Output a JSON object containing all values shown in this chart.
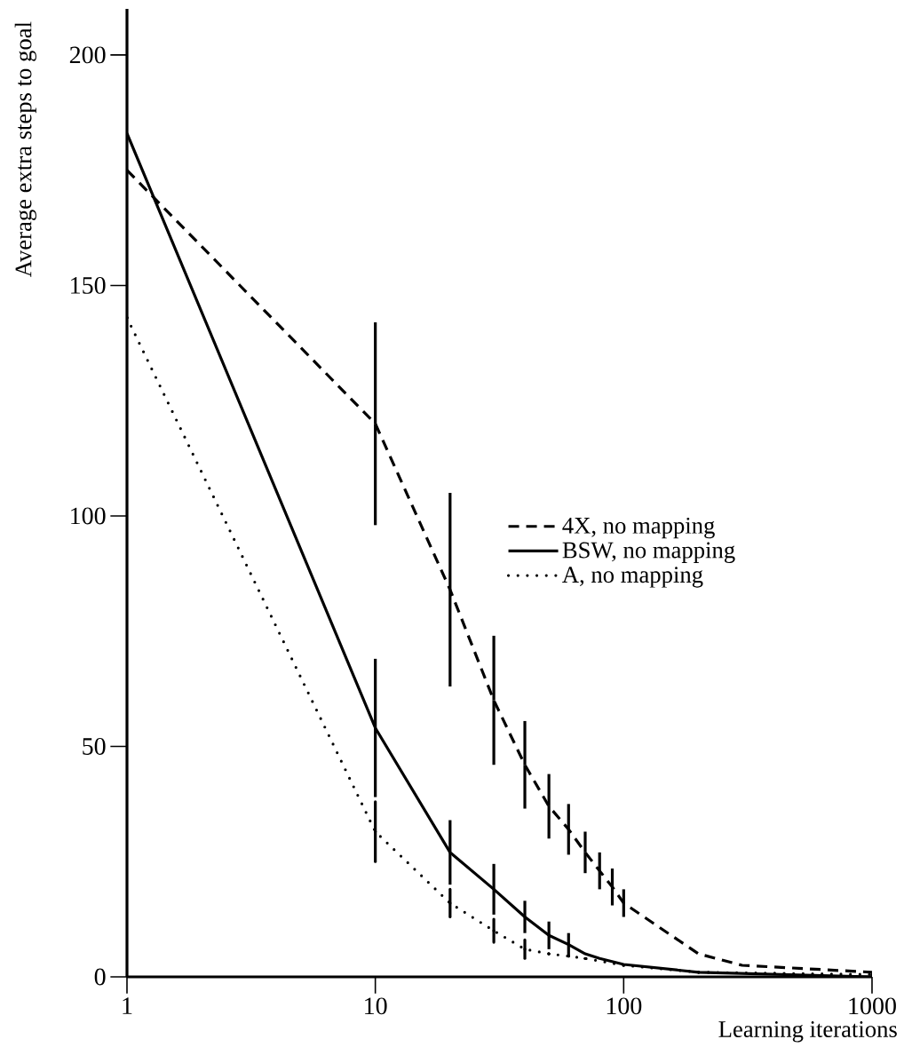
{
  "chart_data": {
    "type": "line",
    "xlabel": "Learning iterations",
    "ylabel": "Average extra steps to goal",
    "log": "x",
    "xlim": [
      1,
      1000
    ],
    "ylim": [
      0,
      210
    ],
    "xticks": [
      1,
      10,
      100,
      1000
    ],
    "yticks": [
      0,
      50,
      100,
      150,
      200
    ],
    "legend": "right",
    "series": [
      {
        "name": "4X, no mapping",
        "color": "#000000",
        "line_style": "dashed",
        "x": [
          1,
          10,
          20,
          30,
          40,
          50,
          60,
          70,
          80,
          90,
          100,
          200,
          300,
          1000
        ],
        "values": [
          175,
          120,
          84,
          60,
          46,
          37,
          32,
          27,
          23,
          19.5,
          16,
          5,
          2.5,
          1
        ],
        "errors": [
          null,
          22,
          21,
          14,
          9.5,
          7,
          5.5,
          4.5,
          4,
          4,
          3,
          null,
          null,
          null
        ]
      },
      {
        "name": "BSW, no mapping",
        "color": "#000000",
        "line_style": "solid",
        "x": [
          1,
          10,
          20,
          30,
          40,
          50,
          60,
          70,
          80,
          100,
          200,
          1000
        ],
        "values": [
          183,
          54,
          27,
          19,
          13,
          9,
          7,
          5,
          4,
          2.7,
          1,
          0
        ],
        "errors": [
          null,
          15,
          7,
          5.5,
          3.5,
          3,
          2.5,
          null,
          null,
          null,
          null,
          null
        ]
      },
      {
        "name": "A, no mapping",
        "color": "#000000",
        "line_style": "dotted",
        "x": [
          1,
          10,
          20,
          30,
          40,
          50,
          60,
          70,
          100,
          200,
          1000
        ],
        "values": [
          143,
          31.5,
          16,
          10,
          6,
          5,
          4.5,
          4,
          2.5,
          1,
          0.5
        ],
        "errors": [
          null,
          6.5,
          3,
          2.5,
          2,
          null,
          null,
          null,
          null,
          null,
          null
        ]
      }
    ]
  }
}
